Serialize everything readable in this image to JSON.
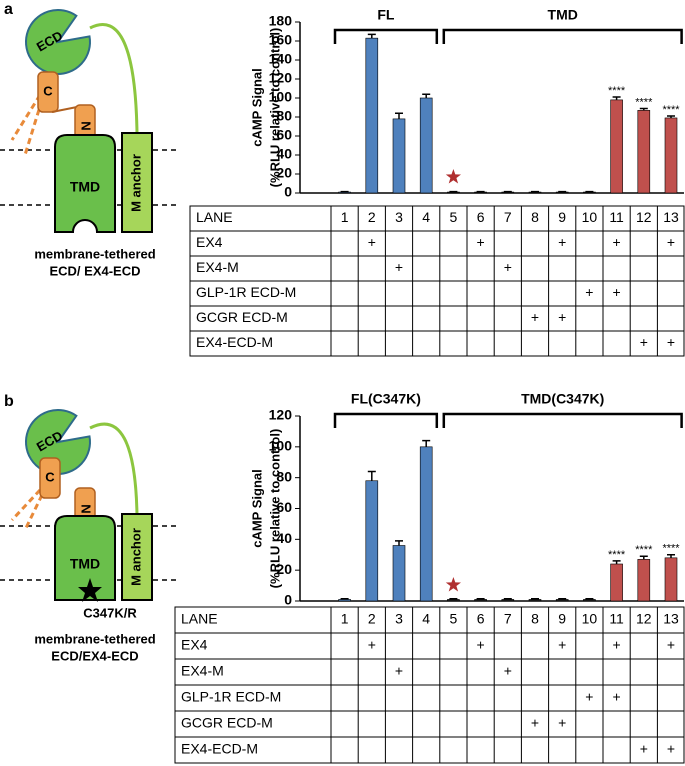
{
  "chart_data": [
    {
      "type": "bar",
      "groups": [
        "FL",
        "TMD"
      ],
      "y_label": [
        "cAMP Signal",
        "(%RLU relative to control)"
      ],
      "values": [
        1,
        163,
        78,
        100,
        1,
        1,
        1,
        1,
        1,
        1,
        98,
        87,
        79
      ],
      "errors": [
        0.5,
        4,
        6,
        4,
        0.5,
        0.5,
        0.5,
        0.5,
        0.5,
        0.5,
        3,
        2,
        2
      ],
      "colors": [
        "#4f81bd",
        "#4f81bd",
        "#4f81bd",
        "#4f81bd",
        "#222222",
        "#222222",
        "#222222",
        "#222222",
        "#222222",
        "#222222",
        "#c0504d",
        "#c0504d",
        "#c0504d"
      ],
      "significance": [
        null,
        null,
        null,
        null,
        null,
        null,
        null,
        null,
        null,
        null,
        "****",
        "****",
        "****"
      ],
      "ylim": [
        0,
        180
      ],
      "yticks": [
        0,
        20,
        40,
        60,
        80,
        100,
        120,
        140,
        160,
        180
      ]
    },
    {
      "type": "bar",
      "groups": [
        "FL(C347K)",
        "TMD(C347K)"
      ],
      "y_label": [
        "cAMP Signal",
        "(%RLU relative to control)"
      ],
      "values": [
        1,
        78,
        36,
        100,
        1,
        1,
        1,
        1,
        1,
        1,
        24,
        27,
        28
      ],
      "errors": [
        0.5,
        6,
        3,
        4,
        0.5,
        0.5,
        0.5,
        0.5,
        0.5,
        0.5,
        2,
        2,
        2
      ],
      "colors": [
        "#4f81bd",
        "#4f81bd",
        "#4f81bd",
        "#4f81bd",
        "#222222",
        "#222222",
        "#222222",
        "#222222",
        "#222222",
        "#222222",
        "#c0504d",
        "#c0504d",
        "#c0504d"
      ],
      "significance": [
        null,
        null,
        null,
        null,
        null,
        null,
        null,
        null,
        null,
        null,
        "****",
        "****",
        "****"
      ],
      "ylim": [
        0,
        120
      ],
      "yticks": [
        0,
        20,
        40,
        60,
        80,
        100,
        120
      ]
    }
  ],
  "panels": [
    {
      "label": "a",
      "diagram": {
        "ecd": "ECD",
        "c": "C",
        "n": "N",
        "tmd": "TMD",
        "anchor": "M anchor",
        "caption": [
          "membrane-tethered",
          "ECD/ EX4-ECD"
        ]
      },
      "table": {
        "rows": [
          [
            "LANE",
            "1",
            "2",
            "3",
            "4",
            "5",
            "6",
            "7",
            "8",
            "9",
            "10",
            "11",
            "12",
            "13"
          ],
          [
            "EX4",
            null,
            "+",
            null,
            null,
            null,
            "+",
            null,
            null,
            "+",
            null,
            "+",
            null,
            "+"
          ],
          [
            "EX4-M",
            null,
            null,
            "+",
            null,
            null,
            null,
            "+",
            null,
            null,
            null,
            null,
            null,
            null
          ],
          [
            "GLP-1R ECD-M",
            null,
            null,
            null,
            null,
            null,
            null,
            null,
            null,
            null,
            "+",
            "+",
            null,
            null
          ],
          [
            "GCGR ECD-M",
            null,
            null,
            null,
            null,
            null,
            null,
            null,
            "+",
            "+",
            null,
            null,
            null,
            null
          ],
          [
            "EX4-ECD-M",
            null,
            null,
            null,
            null,
            null,
            null,
            null,
            null,
            null,
            null,
            null,
            "+",
            "+"
          ]
        ]
      }
    },
    {
      "label": "b",
      "diagram": {
        "ecd": "ECD",
        "c": "C",
        "n": "N",
        "tmd": "TMD",
        "anchor": "M anchor",
        "mutation": "C347K/R",
        "caption": [
          "membrane-tethered",
          "ECD/EX4-ECD"
        ]
      },
      "table": {
        "rows": [
          [
            "LANE",
            "1",
            "2",
            "3",
            "4",
            "5",
            "6",
            "7",
            "8",
            "9",
            "10",
            "11",
            "12",
            "13"
          ],
          [
            "EX4",
            null,
            "+",
            null,
            null,
            null,
            "+",
            null,
            null,
            "+",
            null,
            "+",
            null,
            "+"
          ],
          [
            "EX4-M",
            null,
            null,
            "+",
            null,
            null,
            null,
            "+",
            null,
            null,
            null,
            null,
            null,
            null
          ],
          [
            "GLP-1R ECD-M",
            null,
            null,
            null,
            null,
            null,
            null,
            null,
            null,
            null,
            "+",
            "+",
            null,
            null
          ],
          [
            "GCGR ECD-M",
            null,
            null,
            null,
            null,
            null,
            null,
            null,
            "+",
            "+",
            null,
            null,
            null,
            null
          ],
          [
            "EX4-ECD-M",
            null,
            null,
            null,
            null,
            null,
            null,
            null,
            null,
            null,
            null,
            null,
            "+",
            "+"
          ]
        ]
      }
    }
  ]
}
